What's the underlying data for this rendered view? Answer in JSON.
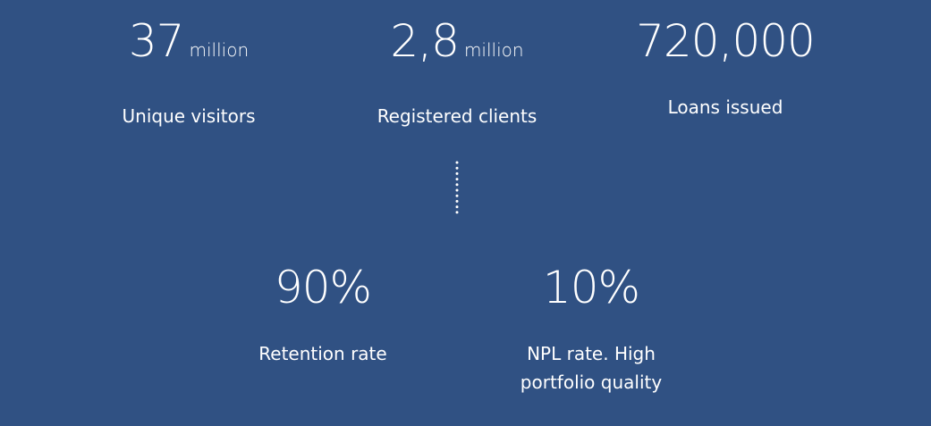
{
  "stats": [
    {
      "value": "37",
      "unit": "million",
      "label": "Unique visitors"
    },
    {
      "value": "2,8",
      "unit": "million",
      "label": "Registered clients"
    },
    {
      "value": "720,000",
      "label": "Loans issued"
    },
    {
      "value": "90%",
      "label": "Retention rate"
    },
    {
      "value": "10%",
      "label": "NPL rate. High portfolio quality"
    }
  ]
}
